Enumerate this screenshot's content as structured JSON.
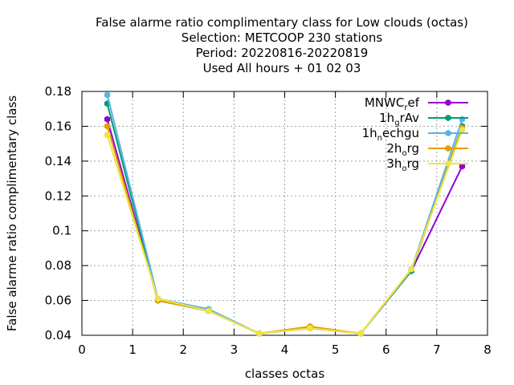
{
  "chart_data": {
    "type": "line",
    "title_lines": [
      "False alarme ratio complimentary class  for Low clouds (octas)",
      "Selection: METCOOP    230 stations",
      "Period: 20220816-20220819",
      "Used  All hours  + 01 02 03"
    ],
    "xlabel": "classes octas",
    "ylabel": "False alarme ratio complimentary class",
    "xlim": [
      0,
      8
    ],
    "ylim": [
      0.04,
      0.18
    ],
    "x_ticks": [
      "0",
      "1",
      "2",
      "3",
      "4",
      "5",
      "6",
      "7",
      "8"
    ],
    "y_ticks": [
      "0.04",
      "0.06",
      "0.08",
      "0.1",
      "0.12",
      "0.14",
      "0.16",
      "0.18"
    ],
    "grid": true,
    "legend_position": "top-right",
    "x": [
      0.5,
      1.5,
      2.5,
      3.5,
      4.5,
      5.5,
      6.5,
      7.5
    ],
    "series": [
      {
        "name_main": "MNWC",
        "name_sub": "r",
        "name_tail": "ef",
        "color": "#9400d3",
        "values": [
          0.164,
          0.06,
          0.054,
          0.041,
          0.044,
          0.041,
          0.077,
          0.137
        ]
      },
      {
        "name_main": "1h",
        "name_sub": "g",
        "name_tail": "rAv",
        "color": "#009e73",
        "values": [
          0.173,
          0.06,
          0.054,
          0.041,
          0.044,
          0.041,
          0.077,
          0.16
        ]
      },
      {
        "name_main": "1h",
        "name_sub": "n",
        "name_tail": "echgu",
        "color": "#56b4e9",
        "values": [
          0.178,
          0.061,
          0.055,
          0.041,
          0.044,
          0.041,
          0.078,
          0.164
        ]
      },
      {
        "name_main": "2h",
        "name_sub": "o",
        "name_tail": "rg",
        "color": "#e69f00",
        "values": [
          0.16,
          0.06,
          0.054,
          0.041,
          0.045,
          0.041,
          0.078,
          0.159
        ]
      },
      {
        "name_main": "3h",
        "name_sub": "o",
        "name_tail": "rg",
        "color": "#f0e442",
        "values": [
          0.155,
          0.061,
          0.054,
          0.041,
          0.044,
          0.041,
          0.078,
          0.158
        ]
      }
    ]
  }
}
